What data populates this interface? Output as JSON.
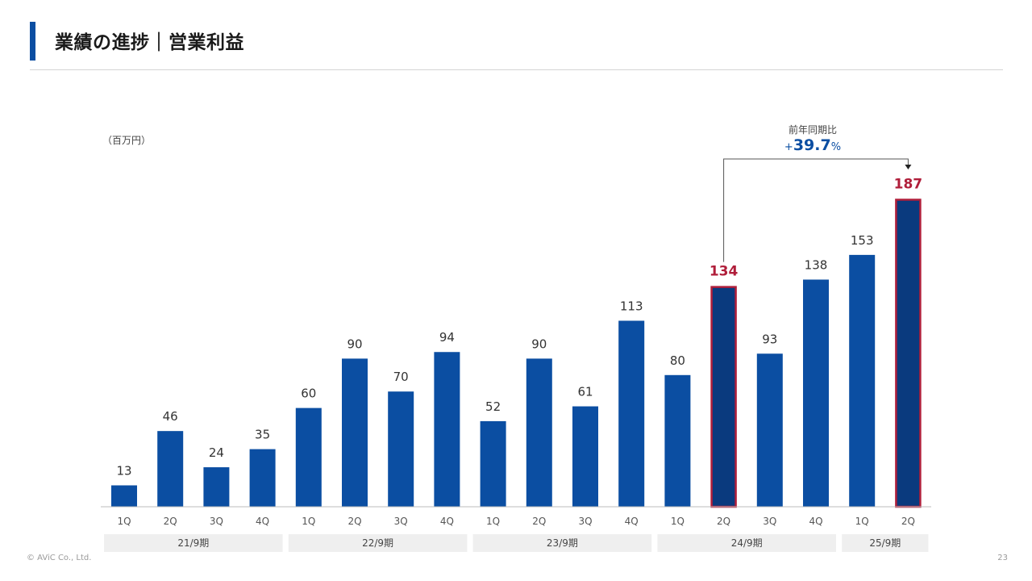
{
  "header": {
    "title": "業績の進捗｜営業利益"
  },
  "unit_label": "（百万円）",
  "yoy": {
    "label": "前年同期比",
    "sign": "+",
    "value": "39.7",
    "unit": "%"
  },
  "colors": {
    "bar": "#0b4ea2",
    "highlight_bar": "#0a3a7e",
    "highlight_border": "#b01e3a",
    "highlight_text": "#b01e3a",
    "accent": "#0b4ea2"
  },
  "chart_data": {
    "type": "bar",
    "categories": [
      "1Q",
      "2Q",
      "3Q",
      "4Q",
      "1Q",
      "2Q",
      "3Q",
      "4Q",
      "1Q",
      "2Q",
      "3Q",
      "4Q",
      "1Q",
      "2Q",
      "3Q",
      "4Q",
      "1Q",
      "2Q"
    ],
    "values": [
      13,
      46,
      24,
      35,
      60,
      90,
      70,
      94,
      52,
      90,
      61,
      113,
      80,
      134,
      93,
      138,
      153,
      187
    ],
    "highlighted_indices": [
      13,
      17
    ],
    "groups": [
      {
        "label": "21/9期",
        "start": 0,
        "end": 3
      },
      {
        "label": "22/9期",
        "start": 4,
        "end": 7
      },
      {
        "label": "23/9期",
        "start": 8,
        "end": 11
      },
      {
        "label": "24/9期",
        "start": 12,
        "end": 15
      },
      {
        "label": "25/9期",
        "start": 16,
        "end": 17
      }
    ],
    "ylim": [
      0,
      190
    ],
    "grid": false,
    "data_labels": true
  },
  "footer": {
    "copyright": "© AViC Co., Ltd.",
    "page_number": "23"
  }
}
